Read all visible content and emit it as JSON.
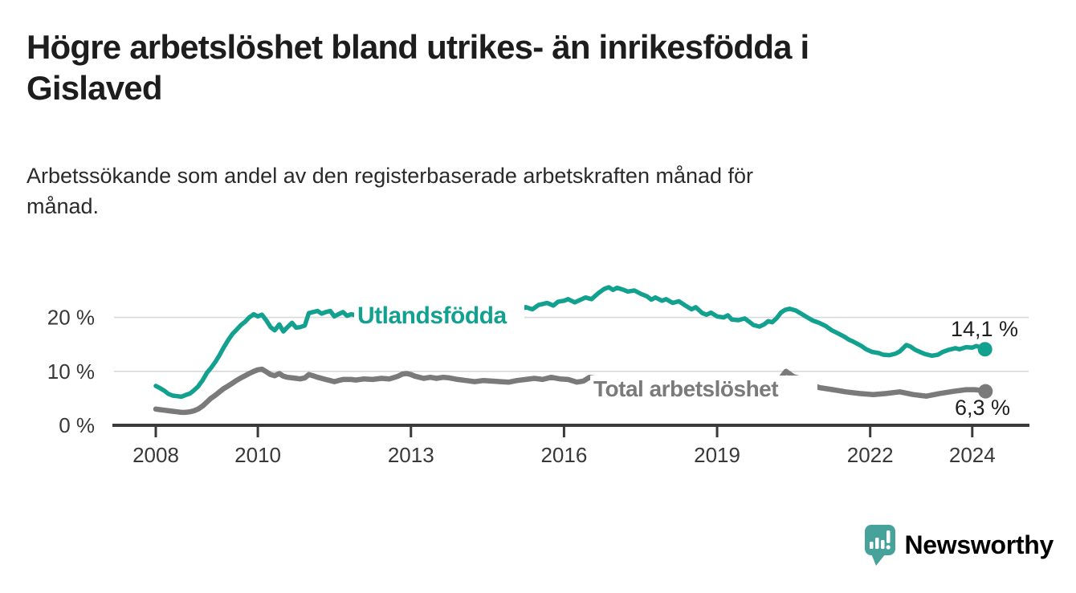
{
  "header": {
    "title_line1": "Högre arbetslöshet bland utrikes- än inrikesfödda i",
    "title_line2": "Gislaved",
    "subtitle_line1": "Arbetssökande som andel av den registerbaserade arbetskraften månad för",
    "subtitle_line2": "månad."
  },
  "branding": {
    "logo_text": "Newsworthy",
    "logo_color": "#48a29c"
  },
  "colors": {
    "foreign_born": "#13a18f",
    "total": "#7a7a7a",
    "axis": "#3a3a3a",
    "tick_label": "#383838",
    "grid": "#d9d9d9",
    "value_label": "#1e1e1e",
    "halo": "#ffffff"
  },
  "chart_data": {
    "type": "line",
    "title": "Högre arbetslöshet bland utrikes- än inrikesfödda i Gislaved",
    "subtitle": "Arbetssökande som andel av den registerbaserade arbetskraften månad för månad.",
    "x_unit": "år (månadsdata)",
    "y_unit": "procent",
    "xlim": [
      2007.2,
      2025.1
    ],
    "ylim": [
      0,
      27
    ],
    "grid": "horizontal",
    "legend_position": "inline-labels",
    "xticks": [
      2008,
      2010,
      2013,
      2016,
      2019,
      2022,
      2024
    ],
    "xtick_labels": [
      "2008",
      "2010",
      "2013",
      "2016",
      "2019",
      "2022",
      "2024"
    ],
    "yticks": [
      0,
      10,
      20
    ],
    "ytick_labels": [
      "0 %",
      "10 %",
      "20 %"
    ],
    "series": [
      {
        "name": "Utlandsfödda",
        "color": "#13a18f",
        "end_value": 14.1,
        "end_label": "14,1 %",
        "points": [
          [
            2008.0,
            7.3
          ],
          [
            2008.08,
            6.9
          ],
          [
            2008.17,
            6.4
          ],
          [
            2008.25,
            5.8
          ],
          [
            2008.33,
            5.5
          ],
          [
            2008.42,
            5.4
          ],
          [
            2008.5,
            5.3
          ],
          [
            2008.58,
            5.6
          ],
          [
            2008.67,
            5.9
          ],
          [
            2008.75,
            6.5
          ],
          [
            2008.83,
            7.2
          ],
          [
            2008.92,
            8.4
          ],
          [
            2009.0,
            9.7
          ],
          [
            2009.08,
            10.6
          ],
          [
            2009.17,
            11.8
          ],
          [
            2009.25,
            13.0
          ],
          [
            2009.33,
            14.4
          ],
          [
            2009.42,
            15.8
          ],
          [
            2009.5,
            16.9
          ],
          [
            2009.58,
            17.7
          ],
          [
            2009.67,
            18.6
          ],
          [
            2009.75,
            19.2
          ],
          [
            2009.83,
            20.0
          ],
          [
            2009.92,
            20.6
          ],
          [
            2010.0,
            20.2
          ],
          [
            2010.08,
            20.5
          ],
          [
            2010.17,
            19.4
          ],
          [
            2010.25,
            18.2
          ],
          [
            2010.33,
            17.6
          ],
          [
            2010.42,
            18.7
          ],
          [
            2010.5,
            17.4
          ],
          [
            2010.58,
            18.2
          ],
          [
            2010.67,
            19.0
          ],
          [
            2010.75,
            18.1
          ],
          [
            2010.83,
            18.2
          ],
          [
            2010.92,
            18.5
          ],
          [
            2011.0,
            20.8
          ],
          [
            2011.08,
            21.0
          ],
          [
            2011.17,
            21.2
          ],
          [
            2011.25,
            20.7
          ],
          [
            2011.33,
            21.0
          ],
          [
            2011.42,
            21.2
          ],
          [
            2011.5,
            20.2
          ],
          [
            2011.58,
            20.6
          ],
          [
            2011.67,
            21.0
          ],
          [
            2011.75,
            20.3
          ],
          [
            2011.83,
            20.6
          ],
          [
            2011.92,
            20.4
          ],
          [
            2012.17,
            20.1
          ],
          [
            2012.42,
            20.3
          ],
          [
            2012.67,
            20.1
          ],
          [
            2012.92,
            20.4
          ],
          [
            2013.17,
            20.2
          ],
          [
            2013.42,
            20.5
          ],
          [
            2013.67,
            20.3
          ],
          [
            2013.92,
            20.5
          ],
          [
            2014.17,
            20.7
          ],
          [
            2014.42,
            20.5
          ],
          [
            2014.67,
            20.8
          ],
          [
            2014.92,
            21.0
          ],
          [
            2015.08,
            21.2
          ],
          [
            2015.25,
            21.9
          ],
          [
            2015.38,
            21.5
          ],
          [
            2015.5,
            22.3
          ],
          [
            2015.67,
            22.7
          ],
          [
            2015.79,
            22.2
          ],
          [
            2015.88,
            22.9
          ],
          [
            2016.0,
            23.1
          ],
          [
            2016.08,
            23.4
          ],
          [
            2016.21,
            22.8
          ],
          [
            2016.33,
            23.3
          ],
          [
            2016.42,
            23.7
          ],
          [
            2016.54,
            23.4
          ],
          [
            2016.67,
            24.5
          ],
          [
            2016.79,
            25.3
          ],
          [
            2016.88,
            25.6
          ],
          [
            2016.96,
            25.1
          ],
          [
            2017.04,
            25.5
          ],
          [
            2017.17,
            25.1
          ],
          [
            2017.25,
            24.8
          ],
          [
            2017.38,
            25.0
          ],
          [
            2017.5,
            24.4
          ],
          [
            2017.63,
            23.9
          ],
          [
            2017.71,
            23.3
          ],
          [
            2017.79,
            23.7
          ],
          [
            2017.92,
            23.1
          ],
          [
            2018.0,
            23.4
          ],
          [
            2018.13,
            22.7
          ],
          [
            2018.25,
            23.0
          ],
          [
            2018.38,
            22.2
          ],
          [
            2018.5,
            21.5
          ],
          [
            2018.58,
            21.9
          ],
          [
            2018.71,
            20.8
          ],
          [
            2018.79,
            20.5
          ],
          [
            2018.88,
            20.9
          ],
          [
            2019.0,
            20.2
          ],
          [
            2019.13,
            20.0
          ],
          [
            2019.21,
            20.4
          ],
          [
            2019.29,
            19.6
          ],
          [
            2019.42,
            19.5
          ],
          [
            2019.54,
            19.8
          ],
          [
            2019.63,
            19.2
          ],
          [
            2019.71,
            18.6
          ],
          [
            2019.83,
            18.3
          ],
          [
            2019.92,
            18.7
          ],
          [
            2020.0,
            19.3
          ],
          [
            2020.08,
            19.1
          ],
          [
            2020.17,
            19.9
          ],
          [
            2020.25,
            20.9
          ],
          [
            2020.33,
            21.4
          ],
          [
            2020.42,
            21.6
          ],
          [
            2020.54,
            21.3
          ],
          [
            2020.63,
            20.8
          ],
          [
            2020.75,
            20.1
          ],
          [
            2020.88,
            19.4
          ],
          [
            2021.0,
            19.0
          ],
          [
            2021.13,
            18.4
          ],
          [
            2021.25,
            17.6
          ],
          [
            2021.38,
            17.0
          ],
          [
            2021.5,
            16.4
          ],
          [
            2021.58,
            15.9
          ],
          [
            2021.67,
            15.5
          ],
          [
            2021.83,
            14.7
          ],
          [
            2021.92,
            14.1
          ],
          [
            2022.04,
            13.6
          ],
          [
            2022.17,
            13.4
          ],
          [
            2022.25,
            13.1
          ],
          [
            2022.38,
            13.0
          ],
          [
            2022.5,
            13.3
          ],
          [
            2022.58,
            13.7
          ],
          [
            2022.71,
            14.9
          ],
          [
            2022.79,
            14.6
          ],
          [
            2022.88,
            14.0
          ],
          [
            2023.0,
            13.5
          ],
          [
            2023.08,
            13.2
          ],
          [
            2023.21,
            12.9
          ],
          [
            2023.33,
            13.1
          ],
          [
            2023.42,
            13.6
          ],
          [
            2023.54,
            14.0
          ],
          [
            2023.67,
            14.3
          ],
          [
            2023.75,
            14.1
          ],
          [
            2023.88,
            14.5
          ],
          [
            2024.0,
            14.4
          ],
          [
            2024.08,
            14.7
          ],
          [
            2024.17,
            14.4
          ],
          [
            2024.25,
            14.1
          ]
        ]
      },
      {
        "name": "Total arbetslöshet",
        "color": "#7a7a7a",
        "end_value": 6.3,
        "end_label": "6,3 %",
        "points": [
          [
            2008.0,
            3.0
          ],
          [
            2008.08,
            2.9
          ],
          [
            2008.17,
            2.8
          ],
          [
            2008.25,
            2.7
          ],
          [
            2008.33,
            2.6
          ],
          [
            2008.42,
            2.5
          ],
          [
            2008.5,
            2.4
          ],
          [
            2008.58,
            2.4
          ],
          [
            2008.67,
            2.5
          ],
          [
            2008.75,
            2.7
          ],
          [
            2008.83,
            3.0
          ],
          [
            2008.92,
            3.6
          ],
          [
            2009.0,
            4.3
          ],
          [
            2009.08,
            5.0
          ],
          [
            2009.17,
            5.6
          ],
          [
            2009.25,
            6.2
          ],
          [
            2009.33,
            6.8
          ],
          [
            2009.42,
            7.3
          ],
          [
            2009.5,
            7.8
          ],
          [
            2009.58,
            8.3
          ],
          [
            2009.67,
            8.8
          ],
          [
            2009.75,
            9.2
          ],
          [
            2009.83,
            9.6
          ],
          [
            2009.92,
            10.0
          ],
          [
            2010.0,
            10.3
          ],
          [
            2010.08,
            10.4
          ],
          [
            2010.17,
            9.9
          ],
          [
            2010.25,
            9.4
          ],
          [
            2010.33,
            9.2
          ],
          [
            2010.42,
            9.6
          ],
          [
            2010.5,
            9.1
          ],
          [
            2010.58,
            8.9
          ],
          [
            2010.67,
            8.8
          ],
          [
            2010.75,
            8.7
          ],
          [
            2010.83,
            8.6
          ],
          [
            2010.92,
            8.8
          ],
          [
            2011.0,
            9.4
          ],
          [
            2011.08,
            9.2
          ],
          [
            2011.17,
            8.9
          ],
          [
            2011.25,
            8.7
          ],
          [
            2011.33,
            8.5
          ],
          [
            2011.42,
            8.3
          ],
          [
            2011.5,
            8.1
          ],
          [
            2011.58,
            8.3
          ],
          [
            2011.67,
            8.5
          ],
          [
            2011.83,
            8.5
          ],
          [
            2011.92,
            8.4
          ],
          [
            2012.08,
            8.6
          ],
          [
            2012.25,
            8.5
          ],
          [
            2012.42,
            8.7
          ],
          [
            2012.58,
            8.6
          ],
          [
            2012.75,
            9.1
          ],
          [
            2012.83,
            9.5
          ],
          [
            2012.92,
            9.6
          ],
          [
            2013.0,
            9.4
          ],
          [
            2013.08,
            9.1
          ],
          [
            2013.25,
            8.7
          ],
          [
            2013.38,
            8.9
          ],
          [
            2013.5,
            8.7
          ],
          [
            2013.63,
            8.9
          ],
          [
            2013.75,
            8.8
          ],
          [
            2013.92,
            8.5
          ],
          [
            2014.08,
            8.3
          ],
          [
            2014.25,
            8.1
          ],
          [
            2014.42,
            8.3
          ],
          [
            2014.58,
            8.2
          ],
          [
            2014.75,
            8.1
          ],
          [
            2014.92,
            8.0
          ],
          [
            2015.08,
            8.3
          ],
          [
            2015.25,
            8.5
          ],
          [
            2015.42,
            8.7
          ],
          [
            2015.58,
            8.5
          ],
          [
            2015.75,
            8.9
          ],
          [
            2015.92,
            8.6
          ],
          [
            2016.08,
            8.5
          ],
          [
            2016.25,
            8.0
          ],
          [
            2016.38,
            8.2
          ],
          [
            2016.5,
            8.9
          ],
          [
            2016.63,
            8.7
          ],
          [
            2016.8,
            8.6
          ],
          [
            2017.0,
            8.5
          ],
          [
            2017.3,
            8.3
          ],
          [
            2017.6,
            8.2
          ],
          [
            2017.9,
            8.0
          ],
          [
            2018.2,
            7.9
          ],
          [
            2018.5,
            7.8
          ],
          [
            2018.8,
            7.6
          ],
          [
            2019.1,
            7.5
          ],
          [
            2019.4,
            7.3
          ],
          [
            2019.7,
            7.2
          ],
          [
            2019.9,
            7.3
          ],
          [
            2020.1,
            7.9
          ],
          [
            2020.25,
            8.8
          ],
          [
            2020.35,
            10.0
          ],
          [
            2020.5,
            9.0
          ],
          [
            2020.7,
            8.5
          ],
          [
            2020.9,
            7.4
          ],
          [
            2021.0,
            7.0
          ],
          [
            2021.27,
            6.6
          ],
          [
            2021.52,
            6.2
          ],
          [
            2021.79,
            5.9
          ],
          [
            2022.06,
            5.7
          ],
          [
            2022.31,
            5.9
          ],
          [
            2022.58,
            6.2
          ],
          [
            2022.84,
            5.7
          ],
          [
            2023.1,
            5.4
          ],
          [
            2023.36,
            5.9
          ],
          [
            2023.63,
            6.3
          ],
          [
            2023.88,
            6.6
          ],
          [
            2024.05,
            6.6
          ],
          [
            2024.15,
            6.5
          ],
          [
            2024.26,
            6.3
          ]
        ]
      }
    ]
  }
}
